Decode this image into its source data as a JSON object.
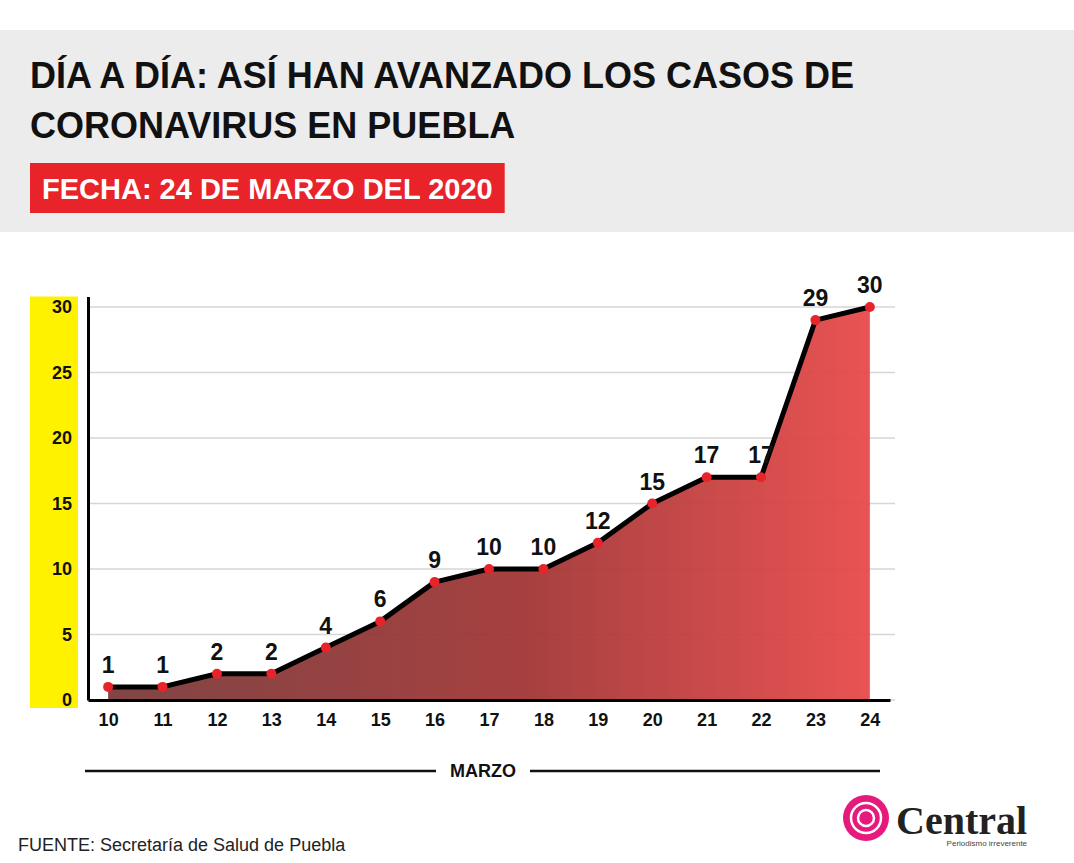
{
  "chart_data": {
    "type": "area",
    "title": "DÍA A DÍA: ASÍ HAN AVANZADO LOS CASOS DE CORONAVIRUS EN PUEBLA",
    "subtitle": "FECHA: 24 DE MARZO DEL 2020",
    "x_label": "MARZO",
    "source": "FUENTE: Secretaría de Salud de Puebla",
    "annotations": [
      "Central",
      "Periodismo irreverente"
    ],
    "categories": [
      "10",
      "11",
      "12",
      "13",
      "14",
      "15",
      "16",
      "17",
      "18",
      "19",
      "20",
      "21",
      "22",
      "23",
      "24"
    ],
    "values": [
      1,
      1,
      2,
      2,
      4,
      6,
      9,
      10,
      10,
      12,
      15,
      17,
      17,
      29,
      30
    ],
    "color": "#e84a4a",
    "marker": "circle",
    "ylim": [
      0,
      30.8
    ],
    "yticks": [
      0,
      5,
      10,
      15,
      20,
      25,
      30
    ],
    "grid": true,
    "data_labels": true
  }
}
